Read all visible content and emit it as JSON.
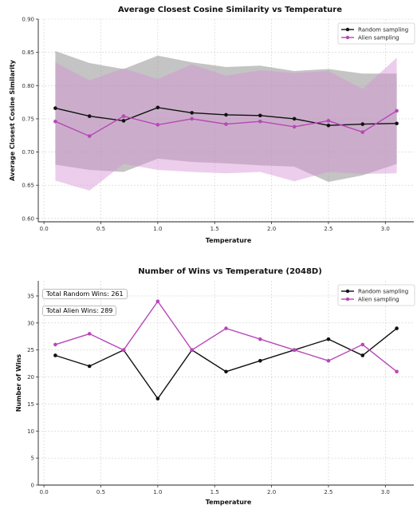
{
  "chart_data": [
    {
      "type": "line",
      "title": "Average Closest Cosine Similarity vs Temperature",
      "xlabel": "Temperature",
      "ylabel": "Average Closest Cosine Similarity",
      "xlim": [
        -0.05,
        3.25
      ],
      "ylim": [
        0.595,
        0.9
      ],
      "xticks": [
        "0.0",
        "0.5",
        "1.0",
        "1.5",
        "2.0",
        "2.5",
        "3.0"
      ],
      "yticks": [
        "0.60",
        "0.65",
        "0.70",
        "0.75",
        "0.80",
        "0.85",
        "0.90"
      ],
      "grid": true,
      "legend_position": "top-right",
      "x": [
        0.1,
        0.4,
        0.7,
        1.0,
        1.3,
        1.6,
        1.9,
        2.2,
        2.5,
        2.8,
        3.1
      ],
      "series": [
        {
          "name": "Random sampling",
          "color": "#111111",
          "band_color": "#8a8a8a",
          "values": [
            0.766,
            0.754,
            0.747,
            0.767,
            0.759,
            0.756,
            0.755,
            0.75,
            0.74,
            0.742,
            0.743
          ],
          "upper": [
            0.852,
            0.834,
            0.825,
            0.845,
            0.835,
            0.828,
            0.83,
            0.822,
            0.825,
            0.818,
            0.818
          ],
          "lower": [
            0.681,
            0.673,
            0.67,
            0.69,
            0.685,
            0.683,
            0.68,
            0.678,
            0.655,
            0.665,
            0.682
          ]
        },
        {
          "name": "Alien sampling",
          "color": "#b847b8",
          "band_color": "#d593d5",
          "values": [
            0.746,
            0.724,
            0.754,
            0.741,
            0.75,
            0.742,
            0.746,
            0.738,
            0.747,
            0.73,
            0.762
          ],
          "upper": [
            0.835,
            0.808,
            0.826,
            0.81,
            0.832,
            0.815,
            0.823,
            0.819,
            0.822,
            0.795,
            0.842
          ],
          "lower": [
            0.657,
            0.642,
            0.682,
            0.673,
            0.67,
            0.668,
            0.67,
            0.656,
            0.67,
            0.667,
            0.668
          ]
        }
      ]
    },
    {
      "type": "line",
      "title": "Number of Wins vs Temperature (2048D)",
      "xlabel": "Temperature",
      "ylabel": "Number of Wins",
      "xlim": [
        -0.05,
        3.25
      ],
      "ylim": [
        0,
        37.8
      ],
      "xticks": [
        "0.0",
        "0.5",
        "1.0",
        "1.5",
        "2.0",
        "2.5",
        "3.0"
      ],
      "yticks": [
        "0",
        "5",
        "10",
        "15",
        "20",
        "25",
        "30",
        "35"
      ],
      "grid": true,
      "legend_position": "top-right",
      "annotations": [
        "Total Random Wins: 261",
        "Total Alien Wins: 289"
      ],
      "x": [
        0.1,
        0.4,
        0.7,
        1.0,
        1.3,
        1.6,
        1.9,
        2.2,
        2.5,
        2.8,
        3.1
      ],
      "series": [
        {
          "name": "Random sampling",
          "color": "#111111",
          "values": [
            24,
            22,
            25,
            16,
            25,
            21,
            23,
            25,
            27,
            24,
            29
          ]
        },
        {
          "name": "Alien sampling",
          "color": "#b847b8",
          "values": [
            26,
            28,
            25,
            34,
            25,
            29,
            27,
            25,
            23,
            26,
            21
          ]
        }
      ]
    }
  ]
}
